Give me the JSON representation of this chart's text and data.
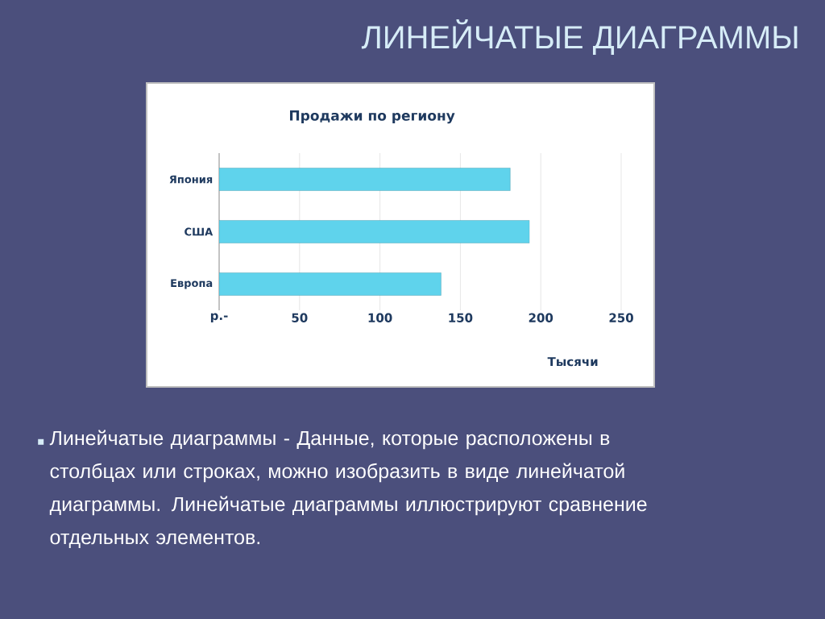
{
  "chart_data": {
    "type": "bar",
    "orientation": "horizontal",
    "title": "ЛИНЕЙЧАТЫЕ ДИАГРАММЫ",
    "subtitle": "Продажи по региону",
    "xlabel": "Тысячи",
    "categories": [
      "Япония",
      "США",
      "Европа"
    ],
    "values": [
      181,
      193,
      138
    ],
    "color": "#5fd3ec",
    "xlim": [
      0,
      250
    ],
    "xticks": [
      {
        "value": 0,
        "label": "р.-"
      },
      50,
      100,
      150,
      200,
      250
    ],
    "grid": "x",
    "annotations": [
      "Линейчатые диаграммы - Данные, которые расположены в столбцах или строках, можно изобразить в виде линейчатой диаграммы. Линейчатые диаграммы иллюстрируют сравнение отдельных элементов."
    ]
  }
}
